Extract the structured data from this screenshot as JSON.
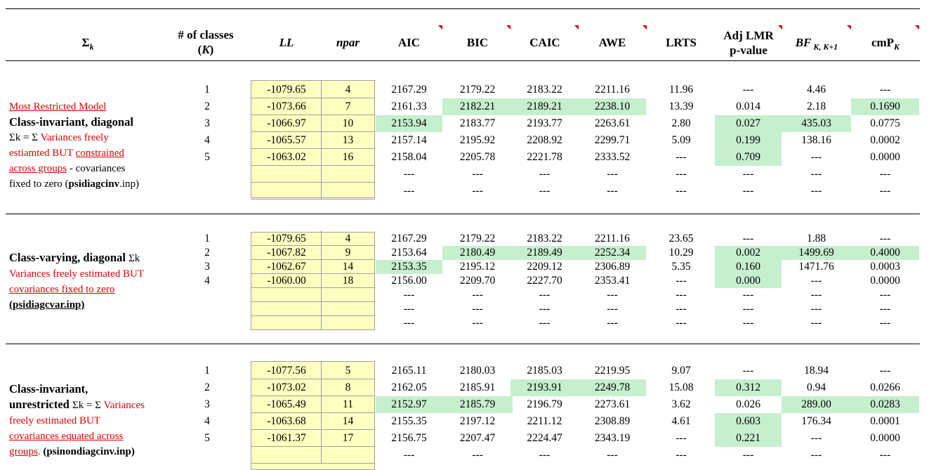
{
  "headers": {
    "sigma": "Σ",
    "sigma_sub": "k",
    "classes_line1": "# of classes",
    "classes_line2a": "(",
    "classes_k": "K",
    "classes_line2b": ")",
    "ll": "LL",
    "npar": "npar",
    "aic": "AIC",
    "bic": "BIC",
    "caic": "CAIC",
    "awe": "AWE",
    "lrts": "LRTS",
    "adjlmr_line1": "Adj LMR",
    "adjlmr_line2": "p-value",
    "bf": "BF",
    "bf_sub": " K, K+1",
    "cmp": "cmP",
    "cmp_sub": "K"
  },
  "colors": {
    "highlight": "#c6efce",
    "input_fill": "#ffffc0",
    "red_text": "#e00000"
  },
  "blocks": [
    {
      "description": {
        "title_link": "Most Restricted Model",
        "title": "Class-invariant, diagonal",
        "line3_sigma": "Σk = Σ",
        "line3_red": "  Variances freely",
        "line4_red": "estiamted BUT ",
        "line4_red_u": "constrained ",
        "line5_red_u": "across groups",
        "line5_black": " - covariances",
        "line6_black": "fixed to zero (",
        "line6_file": "psidiagcinv",
        "line6_end": ".inp)"
      },
      "rows": [
        [
          "1",
          "-1079.65",
          "4",
          "2167.29",
          "2179.22",
          "2183.22",
          "2211.16",
          "11.96",
          "---",
          "4.46",
          "---"
        ],
        [
          "2",
          "-1073.66",
          "7",
          "2161.33",
          "2182.21",
          "2189.21",
          "2238.10",
          "13.39",
          "0.014",
          "2.18",
          "0.1690"
        ],
        [
          "3",
          "-1066.97",
          "10",
          "2153.94",
          "2183.77",
          "2193.77",
          "2263.61",
          "2.80",
          "0.027",
          "435.03",
          "0.0775"
        ],
        [
          "4",
          "-1065.57",
          "13",
          "2157.14",
          "2195.92",
          "2208.92",
          "2299.71",
          "5.09",
          "0.199",
          "138.16",
          "0.0002"
        ],
        [
          "5",
          "-1063.02",
          "16",
          "2158.04",
          "2205.78",
          "2221.78",
          "2333.52",
          "---",
          "0.709",
          "---",
          "0.0000"
        ],
        [
          "",
          "",
          "",
          "---",
          "---",
          "---",
          "---",
          "---",
          "---",
          "---",
          "---"
        ],
        [
          "",
          "",
          "",
          "---",
          "---",
          "---",
          "---",
          "---",
          "---",
          "---",
          "---"
        ]
      ]
    },
    {
      "description": {
        "title": "Class-varying, diagonal ",
        "title_sigma": "Σk",
        "line2_red": "Variances freely estimated BUT",
        "line3_red_u": "covariances fixed to zero ",
        "line4_file": "(psidiagcvar.inp)"
      },
      "rows": [
        [
          "1",
          "-1079.65",
          "4",
          "2167.29",
          "2179.22",
          "2183.22",
          "2211.16",
          "23.65",
          "---",
          "1.88",
          "---"
        ],
        [
          "2",
          "-1067.82",
          "9",
          "2153.64",
          "2180.49",
          "2189.49",
          "2252.34",
          "10.29",
          "0.002",
          "1499.69",
          "0.4000"
        ],
        [
          "3",
          "-1062.67",
          "14",
          "2153.35",
          "2195.12",
          "2209.12",
          "2306.89",
          "5.35",
          "0.160",
          "1471.76",
          "0.0003"
        ],
        [
          "4",
          "-1060.00",
          "18",
          "2156.00",
          "2209.70",
          "2227.70",
          "2353.41",
          "---",
          "0.000",
          "---",
          "0.0000"
        ],
        [
          "",
          "",
          "",
          "---",
          "---",
          "---",
          "---",
          "---",
          "---",
          "---",
          "---"
        ],
        [
          "",
          "",
          "",
          "---",
          "---",
          "---",
          "---",
          "---",
          "---",
          "---",
          "---"
        ],
        [
          "",
          "",
          "",
          "---",
          "---",
          "---",
          "---",
          "---",
          "---",
          "---",
          "---"
        ]
      ]
    },
    {
      "description": {
        "title1": "Class-invariant,",
        "title2": "unrestricted ",
        "title2_sigma": "Σk = Σ",
        "title2_red": " Variances",
        "line3_red": "freely estimated BUT",
        "line4_red_u": "covariances equated across",
        "line5_red_u": "groups",
        "line5_red": ". ",
        "line5_file": "(psinondiagcinv.inp)"
      },
      "rows": [
        [
          "1",
          "-1077.56",
          "5",
          "2165.11",
          "2180.03",
          "2185.03",
          "2219.95",
          "9.07",
          "---",
          "18.94",
          "---"
        ],
        [
          "2",
          "-1073.02",
          "8",
          "2162.05",
          "2185.91",
          "2193.91",
          "2249.78",
          "15.08",
          "0.312",
          "0.94",
          "0.0266"
        ],
        [
          "3",
          "-1065.49",
          "11",
          "2152.97",
          "2185.79",
          "2196.79",
          "2273.61",
          "3.62",
          "0.026",
          "289.00",
          "0.0283"
        ],
        [
          "4",
          "-1063.68",
          "14",
          "2155.35",
          "2197.12",
          "2211.12",
          "2308.89",
          "4.61",
          "0.603",
          "176.34",
          "0.0001"
        ],
        [
          "5",
          "-1061.37",
          "17",
          "2156.75",
          "2207.47",
          "2224.47",
          "2343.19",
          "---",
          "0.221",
          "---",
          "0.0000"
        ],
        [
          "",
          "",
          "",
          "---",
          "---",
          "---",
          "---",
          "---",
          "---",
          "---",
          "---"
        ]
      ]
    }
  ]
}
